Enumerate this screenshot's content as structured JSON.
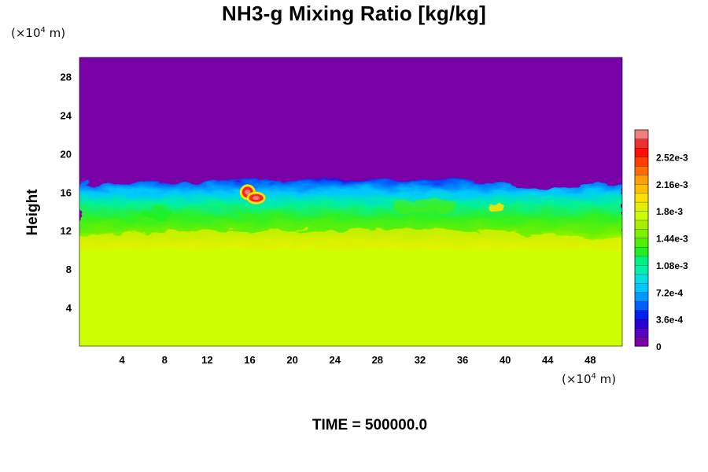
{
  "chart_data": {
    "type": "heatmap",
    "title": "NH3-g Mixing Ratio [kg/kg]",
    "ylabel": "Height",
    "xlabel": "",
    "x_unit": "(×10⁴ m)",
    "y_unit": "(×10⁴ m)",
    "footer": "TIME = 500000.0",
    "xlim": [
      0,
      51
    ],
    "ylim": [
      0,
      30
    ],
    "x_ticks": [
      "4",
      "8",
      "12",
      "16",
      "20",
      "24",
      "28",
      "32",
      "36",
      "40",
      "44",
      "48"
    ],
    "x_tick_values": [
      4,
      8,
      12,
      16,
      20,
      24,
      28,
      32,
      36,
      40,
      44,
      48
    ],
    "y_ticks": [
      "4",
      "8",
      "12",
      "16",
      "20",
      "24",
      "28"
    ],
    "y_tick_values": [
      4,
      8,
      12,
      16,
      20,
      24,
      28
    ],
    "colorbar": {
      "min": 0,
      "max": 0.00288,
      "labels": [
        "0",
        "3.6e-4",
        "7.2e-4",
        "1.08e-3",
        "1.44e-3",
        "1.8e-3",
        "2.16e-3",
        "2.52e-3"
      ],
      "label_values": [
        0,
        0.00036,
        0.00072,
        0.00108,
        0.00144,
        0.0018,
        0.00216,
        0.00252
      ],
      "colors": [
        "#7a00a8",
        "#5a00c0",
        "#2a00d8",
        "#0020f0",
        "#0060ff",
        "#0098ff",
        "#00c8ff",
        "#00e0e0",
        "#00f0b0",
        "#00f080",
        "#20f020",
        "#50f000",
        "#80f000",
        "#a8f000",
        "#ccff00",
        "#e0f000",
        "#ffe000",
        "#ffc000",
        "#ffa000",
        "#ff7000",
        "#ff4000",
        "#ff1000",
        "#f03030",
        "#f08080"
      ]
    },
    "field": {
      "upper_layer": {
        "y_from": 17,
        "y_to": 30,
        "value": 0
      },
      "transition_band": {
        "y_from": 12,
        "y_to": 17,
        "value_range": [
          0.00036,
          0.00162
        ]
      },
      "lower_layer": {
        "y_from": 0,
        "y_to": 11,
        "value": 0.00185
      },
      "local_maxima": [
        {
          "x": 15.8,
          "y": 16.0,
          "value": 0.0028
        },
        {
          "x": 16.6,
          "y": 15.4,
          "value": 0.0024
        }
      ]
    }
  }
}
